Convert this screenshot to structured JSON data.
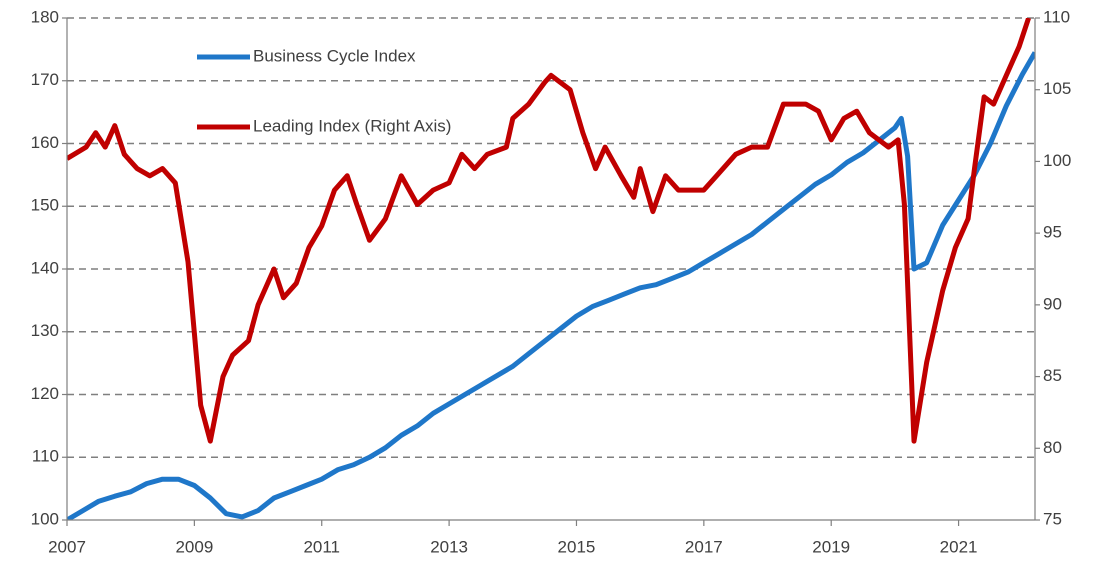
{
  "chart_data": {
    "type": "line",
    "xlim": [
      2007,
      2022.2
    ],
    "xticks": [
      2007,
      2009,
      2011,
      2013,
      2015,
      2017,
      2019,
      2021
    ],
    "ylim": [
      100,
      180
    ],
    "yticks": [
      100,
      110,
      120,
      130,
      140,
      150,
      160,
      170,
      180
    ],
    "y2lim": [
      75,
      110
    ],
    "y2ticks": [
      75,
      80,
      85,
      90,
      95,
      100,
      105,
      110
    ],
    "grid": true,
    "legend": "top-left",
    "series": [
      {
        "name": "Business Cycle Index",
        "color": "#1f77c9",
        "x": [
          2007.0,
          2007.25,
          2007.5,
          2007.75,
          2008.0,
          2008.25,
          2008.5,
          2008.75,
          2009.0,
          2009.25,
          2009.5,
          2009.75,
          2010.0,
          2010.25,
          2010.5,
          2010.75,
          2011.0,
          2011.25,
          2011.5,
          2011.75,
          2012.0,
          2012.25,
          2012.5,
          2012.75,
          2013.0,
          2013.25,
          2013.5,
          2013.75,
          2014.0,
          2014.25,
          2014.5,
          2014.75,
          2015.0,
          2015.25,
          2015.5,
          2015.75,
          2016.0,
          2016.25,
          2016.5,
          2016.75,
          2017.0,
          2017.25,
          2017.5,
          2017.75,
          2018.0,
          2018.25,
          2018.5,
          2018.75,
          2019.0,
          2019.25,
          2019.5,
          2019.75,
          2020.0,
          2020.1,
          2020.2,
          2020.3,
          2020.5,
          2020.75,
          2021.0,
          2021.25,
          2021.5,
          2021.75,
          2022.0,
          2022.2
        ],
        "values": [
          100,
          101.5,
          103,
          103.8,
          104.5,
          105.8,
          106.5,
          106.5,
          105.5,
          103.5,
          101,
          100.5,
          101.5,
          103.5,
          104.5,
          105.5,
          106.5,
          108,
          108.8,
          110,
          111.5,
          113.5,
          115,
          117,
          118.5,
          120,
          121.5,
          123,
          124.5,
          126.5,
          128.5,
          130.5,
          132.5,
          134,
          135,
          136,
          137,
          137.5,
          138.5,
          139.5,
          141,
          142.5,
          144,
          145.5,
          147.5,
          149.5,
          151.5,
          153.5,
          155,
          157,
          158.5,
          160.5,
          162.5,
          164,
          158,
          140,
          141,
          147,
          151,
          155,
          160,
          166,
          171,
          174.5
        ]
      },
      {
        "name": "Leading Index (Right Axis)",
        "color": "#c00000",
        "axis": "y2",
        "x": [
          2007.0,
          2007.3,
          2007.45,
          2007.6,
          2007.75,
          2007.9,
          2008.1,
          2008.3,
          2008.5,
          2008.7,
          2008.9,
          2009.0,
          2009.1,
          2009.25,
          2009.45,
          2009.6,
          2009.85,
          2010.0,
          2010.25,
          2010.4,
          2010.6,
          2010.8,
          2011.0,
          2011.2,
          2011.4,
          2011.55,
          2011.75,
          2012.0,
          2012.25,
          2012.5,
          2012.75,
          2013.0,
          2013.2,
          2013.4,
          2013.6,
          2013.9,
          2014.0,
          2014.25,
          2014.5,
          2014.6,
          2014.9,
          2015.1,
          2015.3,
          2015.45,
          2015.7,
          2015.9,
          2016.0,
          2016.2,
          2016.4,
          2016.6,
          2016.85,
          2017.0,
          2017.2,
          2017.5,
          2017.75,
          2018.0,
          2018.25,
          2018.4,
          2018.6,
          2018.8,
          2019.0,
          2019.2,
          2019.4,
          2019.6,
          2019.9,
          2020.05,
          2020.15,
          2020.3,
          2020.5,
          2020.75,
          2020.95,
          2021.15,
          2021.25,
          2021.4,
          2021.55,
          2021.75,
          2021.95,
          2022.1
        ],
        "values": [
          100.2,
          101,
          102,
          101,
          102.5,
          100.5,
          99.5,
          99,
          99.5,
          98.5,
          93,
          88,
          83,
          80.5,
          85,
          86.5,
          87.5,
          90,
          92.5,
          90.5,
          91.5,
          94,
          95.5,
          98,
          99,
          97,
          94.5,
          96,
          99,
          97,
          98,
          98.5,
          100.5,
          99.5,
          100.5,
          101,
          103,
          104,
          105.5,
          106,
          105,
          102,
          99.5,
          101,
          99,
          97.5,
          99.5,
          96.5,
          99,
          98,
          98,
          98,
          99,
          100.5,
          101,
          101,
          104,
          104,
          104,
          103.5,
          101.5,
          103,
          103.5,
          102,
          101,
          101.5,
          97,
          80.5,
          86,
          91,
          94,
          96,
          99.5,
          104.5,
          104,
          106,
          108,
          110
        ]
      }
    ]
  }
}
